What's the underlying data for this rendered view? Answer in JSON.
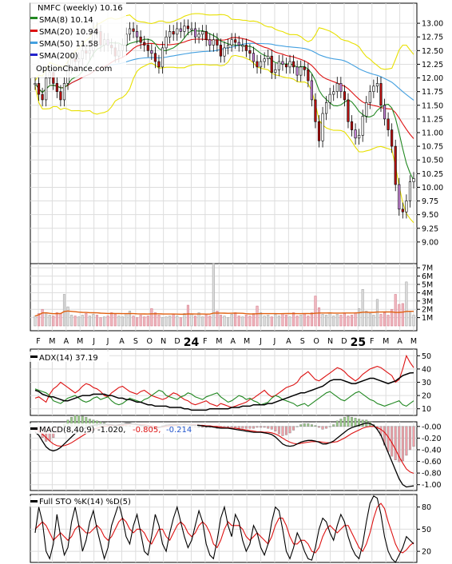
{
  "chart_data": {
    "type": "line",
    "x_labels": [
      "F",
      "M",
      "A",
      "M",
      "J",
      "J",
      "A",
      "S",
      "O",
      "N",
      "D",
      "24",
      "F",
      "M",
      "A",
      "M",
      "J",
      "J",
      "A",
      "S",
      "O",
      "N",
      "D",
      "25",
      "F",
      "M",
      "A",
      "M"
    ],
    "price": {
      "title": "NMFC (weekly) 10.16",
      "watermark": "OptionChance.com",
      "ylim": [
        8.75,
        13.25
      ],
      "yticks": [
        "13.00",
        "12.75",
        "12.50",
        "12.25",
        "12.00",
        "11.75",
        "11.50",
        "11.25",
        "11.00",
        "10.75",
        "10.50",
        "10.25",
        "10.00",
        "9.75",
        "9.50",
        "9.25",
        "9.00"
      ],
      "ytick_values": [
        13.0,
        12.75,
        12.5,
        12.25,
        12.0,
        11.75,
        11.5,
        11.25,
        11.0,
        10.75,
        10.5,
        10.25,
        10.0,
        9.75,
        9.5,
        9.25,
        9.0
      ],
      "close": [
        11.9,
        11.7,
        11.6,
        12.0,
        12.1,
        11.9,
        11.75,
        11.6,
        11.9,
        12.2,
        12.35,
        12.3,
        12.35,
        12.5,
        12.45,
        12.5,
        12.9,
        12.85,
        12.6,
        12.7,
        12.6,
        12.55,
        12.4,
        12.5,
        12.6,
        12.8,
        12.9,
        12.85,
        12.75,
        12.65,
        12.6,
        12.5,
        12.45,
        12.3,
        12.2,
        12.55,
        12.75,
        12.85,
        12.8,
        12.9,
        12.85,
        12.95,
        12.9,
        12.9,
        12.75,
        12.8,
        12.85,
        12.7,
        12.6,
        12.7,
        12.6,
        12.4,
        12.55,
        12.6,
        12.7,
        12.65,
        12.6,
        12.6,
        12.5,
        12.45,
        12.3,
        12.2,
        12.3,
        12.35,
        12.4,
        12.1,
        12.15,
        12.3,
        12.25,
        12.2,
        12.3,
        12.2,
        12.05,
        12.2,
        12.15,
        11.95,
        11.6,
        11.2,
        10.85,
        11.35,
        11.55,
        11.7,
        11.75,
        11.9,
        11.75,
        11.6,
        11.2,
        11.05,
        10.9,
        10.95,
        11.3,
        11.55,
        11.75,
        11.85,
        11.9,
        11.5,
        11.25,
        11.05,
        10.75,
        10.05,
        9.6,
        9.55,
        9.75,
        10.1,
        10.16
      ],
      "legend": [
        {
          "label": "SMA(8) 10.14",
          "color": "#228822"
        },
        {
          "label": "SMA(20) 10.94",
          "color": "#dd1111"
        },
        {
          "label": "SMA(50) 11.58",
          "color": "#44a0e0"
        },
        {
          "label": "SMA(200)",
          "color": "#2222cc"
        }
      ],
      "bollinger_color": "#e8e000"
    },
    "volume": {
      "ylim": [
        0,
        7500000
      ],
      "yticks": [
        "7M",
        "6M",
        "5M",
        "4M",
        "3M",
        "2M",
        "1M"
      ],
      "ytick_values": [
        7000000,
        6000000,
        5000000,
        4000000,
        3000000,
        2000000,
        1000000
      ],
      "values": [
        1.2,
        1.5,
        2.0,
        1.6,
        1.3,
        1.2,
        1.6,
        1.5,
        3.8,
        2.3,
        1.3,
        1.2,
        1.1,
        1.3,
        1.5,
        1.2,
        1.4,
        1.3,
        1.0,
        1.1,
        1.2,
        1.6,
        1.4,
        1.2,
        1.1,
        1.5,
        1.8,
        1.2,
        1.0,
        1.3,
        1.1,
        1.2,
        2.1,
        1.6,
        1.3,
        1.0,
        1.1,
        1.2,
        1.4,
        1.2,
        1.0,
        1.5,
        2.5,
        1.4,
        1.2,
        1.6,
        1.1,
        1.3,
        1.2,
        7.5,
        1.8,
        1.3,
        1.2,
        1.0,
        1.4,
        1.6,
        1.2,
        1.1,
        1.3,
        1.2,
        1.5,
        2.4,
        1.6,
        1.2,
        1.3,
        1.1,
        1.4,
        1.2,
        1.5,
        1.3,
        1.1,
        1.6,
        1.2,
        1.3,
        1.5,
        1.2,
        1.6,
        3.6,
        2.2,
        1.4,
        1.3,
        1.6,
        1.2,
        1.4,
        1.3,
        1.5,
        1.2,
        1.3,
        1.6,
        2.1,
        4.4,
        1.8,
        1.5,
        1.3,
        3.2,
        1.4,
        1.6,
        1.3,
        2.0,
        3.8,
        2.6,
        2.7,
        5.3,
        1.8,
        1.3
      ],
      "avg_color": "#e06010"
    },
    "adx": {
      "label": "ADX(14) 37.19",
      "ylim": [
        5,
        55
      ],
      "yticks": [
        "50",
        "40",
        "30",
        "20",
        "10"
      ],
      "ytick_values": [
        50,
        40,
        30,
        20,
        10
      ],
      "adx": [
        24,
        23,
        21,
        20,
        19,
        19,
        18,
        17,
        16,
        16,
        17,
        18,
        19,
        20,
        20,
        20,
        21,
        21,
        21,
        21,
        20,
        20,
        19,
        18,
        18,
        17,
        17,
        16,
        15,
        15,
        14,
        13,
        13,
        12,
        12,
        12,
        12,
        11,
        11,
        11,
        11,
        10,
        10,
        9,
        9,
        9,
        9,
        9,
        10,
        10,
        10,
        10,
        10,
        10,
        11,
        11,
        11,
        12,
        12,
        12,
        13,
        13,
        13,
        13,
        14,
        14,
        15,
        16,
        17,
        18,
        19,
        20,
        21,
        22,
        22,
        23,
        24,
        25,
        26,
        27,
        29,
        31,
        32,
        32,
        32,
        31,
        30,
        29,
        29,
        30,
        31,
        32,
        33,
        33,
        32,
        31,
        30,
        29,
        30,
        31,
        33,
        35,
        36,
        37,
        37.19
      ],
      "plus_di": [
        18,
        19,
        17,
        15,
        21,
        25,
        27,
        30,
        28,
        26,
        24,
        22,
        24,
        27,
        29,
        28,
        26,
        25,
        23,
        20,
        19,
        22,
        24,
        26,
        27,
        25,
        23,
        22,
        21,
        23,
        24,
        22,
        20,
        19,
        18,
        17,
        18,
        20,
        22,
        21,
        19,
        17,
        16,
        14,
        13,
        14,
        15,
        16,
        14,
        13,
        12,
        14,
        13,
        12,
        11,
        12,
        13,
        14,
        15,
        17,
        18,
        20,
        22,
        24,
        21,
        19,
        20,
        22,
        24,
        26,
        27,
        28,
        30,
        34,
        36,
        38,
        35,
        32,
        31,
        33,
        35,
        37,
        39,
        41,
        40,
        38,
        35,
        33,
        31,
        33,
        36,
        38,
        40,
        41,
        42,
        41,
        39,
        37,
        35,
        30,
        32,
        40,
        50,
        45,
        41
      ],
      "minus_di": [
        25,
        24,
        23,
        22,
        20,
        16,
        15,
        14,
        16,
        18,
        19,
        20,
        18,
        16,
        15,
        16,
        18,
        19,
        17,
        18,
        19,
        16,
        14,
        13,
        14,
        16,
        18,
        17,
        16,
        15,
        17,
        18,
        20,
        22,
        24,
        23,
        20,
        19,
        18,
        17,
        19,
        20,
        22,
        21,
        19,
        18,
        17,
        19,
        20,
        21,
        22,
        19,
        17,
        15,
        16,
        18,
        20,
        19,
        17,
        18,
        16,
        15,
        13,
        14,
        15,
        18,
        20,
        19,
        17,
        16,
        15,
        14,
        12,
        13,
        14,
        12,
        14,
        16,
        18,
        20,
        22,
        23,
        21,
        19,
        17,
        16,
        18,
        20,
        22,
        23,
        21,
        19,
        17,
        16,
        14,
        13,
        12,
        13,
        14,
        15,
        16,
        13,
        12,
        14,
        16
      ]
    },
    "macd": {
      "label": "MACD(8,40,9)",
      "value_label": "-1.020,",
      "signal_label": "-0.805,",
      "hist_label": "-0.214",
      "label_colors": [
        "#000000",
        "#dd1111",
        "#2255cc"
      ],
      "ylim": [
        -1.1,
        0.08
      ],
      "yticks": [
        "-0.00",
        "-0.20",
        "-0.40",
        "-0.60",
        "-0.80",
        "-1.00"
      ],
      "ytick_values": [
        0,
        -0.2,
        -0.4,
        -0.6,
        -0.8,
        -1.0
      ],
      "macd": [
        -0.1,
        -0.15,
        -0.25,
        -0.35,
        -0.4,
        -0.42,
        -0.4,
        -0.36,
        -0.3,
        -0.24,
        -0.18,
        -0.12,
        -0.08,
        -0.05,
        -0.02,
        0.0,
        0.02,
        0.03,
        0.04,
        0.04,
        0.03,
        0.03,
        0.02,
        0.03,
        0.04,
        0.05,
        0.05,
        0.04,
        0.03,
        0.02,
        0.01,
        0.0,
        -0.02,
        -0.03,
        -0.02,
        0.0,
        0.02,
        0.03,
        0.03,
        0.03,
        0.03,
        0.04,
        0.03,
        0.02,
        0.02,
        0.02,
        0.01,
        0.0,
        0.0,
        -0.01,
        -0.02,
        -0.03,
        -0.03,
        -0.03,
        -0.04,
        -0.05,
        -0.06,
        -0.07,
        -0.08,
        -0.09,
        -0.1,
        -0.1,
        -0.1,
        -0.11,
        -0.12,
        -0.14,
        -0.18,
        -0.24,
        -0.3,
        -0.33,
        -0.34,
        -0.33,
        -0.3,
        -0.27,
        -0.25,
        -0.24,
        -0.24,
        -0.25,
        -0.27,
        -0.3,
        -0.3,
        -0.28,
        -0.25,
        -0.2,
        -0.15,
        -0.1,
        -0.05,
        -0.02,
        0.0,
        0.02,
        0.04,
        0.06,
        0.05,
        0.02,
        -0.05,
        -0.15,
        -0.3,
        -0.45,
        -0.6,
        -0.75,
        -0.9,
        -1.0,
        -1.04,
        -1.03,
        -1.02
      ],
      "signal": [
        -0.05,
        -0.08,
        -0.13,
        -0.19,
        -0.25,
        -0.3,
        -0.33,
        -0.34,
        -0.33,
        -0.31,
        -0.28,
        -0.24,
        -0.2,
        -0.16,
        -0.12,
        -0.08,
        -0.05,
        -0.03,
        -0.01,
        0.0,
        0.01,
        0.02,
        0.02,
        0.02,
        0.02,
        0.03,
        0.04,
        0.04,
        0.04,
        0.03,
        0.03,
        0.02,
        0.01,
        0.0,
        -0.01,
        -0.01,
        0.0,
        0.01,
        0.02,
        0.02,
        0.03,
        0.03,
        0.03,
        0.03,
        0.03,
        0.02,
        0.02,
        0.01,
        0.01,
        0.0,
        0.0,
        -0.01,
        -0.02,
        -0.02,
        -0.03,
        -0.03,
        -0.04,
        -0.05,
        -0.06,
        -0.07,
        -0.08,
        -0.09,
        -0.09,
        -0.1,
        -0.1,
        -0.11,
        -0.13,
        -0.16,
        -0.2,
        -0.24,
        -0.27,
        -0.29,
        -0.3,
        -0.29,
        -0.28,
        -0.27,
        -0.26,
        -0.26,
        -0.26,
        -0.27,
        -0.28,
        -0.28,
        -0.27,
        -0.26,
        -0.23,
        -0.2,
        -0.16,
        -0.12,
        -0.09,
        -0.06,
        -0.03,
        -0.01,
        0.0,
        0.0,
        -0.02,
        -0.05,
        -0.1,
        -0.18,
        -0.28,
        -0.39,
        -0.52,
        -0.63,
        -0.73,
        -0.78,
        -0.805
      ]
    },
    "sto": {
      "label": "Full STO %K(14) %D(5)",
      "ylim": [
        5,
        97
      ],
      "yticks": [
        "80",
        "50",
        "20"
      ],
      "ytick_values": [
        80,
        50,
        20
      ],
      "k": [
        45,
        80,
        60,
        20,
        10,
        30,
        70,
        40,
        15,
        25,
        60,
        80,
        55,
        20,
        35,
        60,
        75,
        50,
        30,
        10,
        25,
        55,
        70,
        85,
        65,
        40,
        30,
        55,
        70,
        45,
        20,
        15,
        40,
        70,
        55,
        30,
        20,
        45,
        65,
        80,
        60,
        40,
        25,
        35,
        55,
        75,
        60,
        30,
        15,
        10,
        35,
        65,
        80,
        55,
        40,
        70,
        60,
        35,
        20,
        30,
        55,
        45,
        25,
        15,
        30,
        60,
        80,
        75,
        50,
        20,
        10,
        25,
        45,
        35,
        20,
        10,
        8,
        25,
        50,
        65,
        60,
        45,
        35,
        55,
        70,
        60,
        40,
        25,
        15,
        10,
        30,
        60,
        85,
        95,
        92,
        70,
        40,
        20,
        10,
        5,
        15,
        25,
        40,
        35,
        30
      ],
      "d": [
        50,
        55,
        60,
        55,
        45,
        35,
        40,
        45,
        40,
        35,
        40,
        50,
        55,
        50,
        45,
        45,
        50,
        55,
        50,
        40,
        35,
        40,
        50,
        60,
        65,
        60,
        50,
        45,
        50,
        50,
        45,
        35,
        30,
        40,
        50,
        50,
        40,
        35,
        45,
        55,
        60,
        55,
        45,
        40,
        45,
        55,
        60,
        55,
        45,
        30,
        25,
        35,
        50,
        60,
        55,
        55,
        55,
        50,
        40,
        35,
        40,
        45,
        40,
        35,
        30,
        40,
        55,
        65,
        65,
        55,
        40,
        30,
        30,
        35,
        35,
        30,
        20,
        18,
        25,
        40,
        50,
        55,
        50,
        45,
        50,
        55,
        55,
        45,
        35,
        25,
        20,
        30,
        45,
        65,
        80,
        85,
        78,
        60,
        45,
        30,
        20,
        18,
        22,
        28,
        32
      ]
    }
  }
}
